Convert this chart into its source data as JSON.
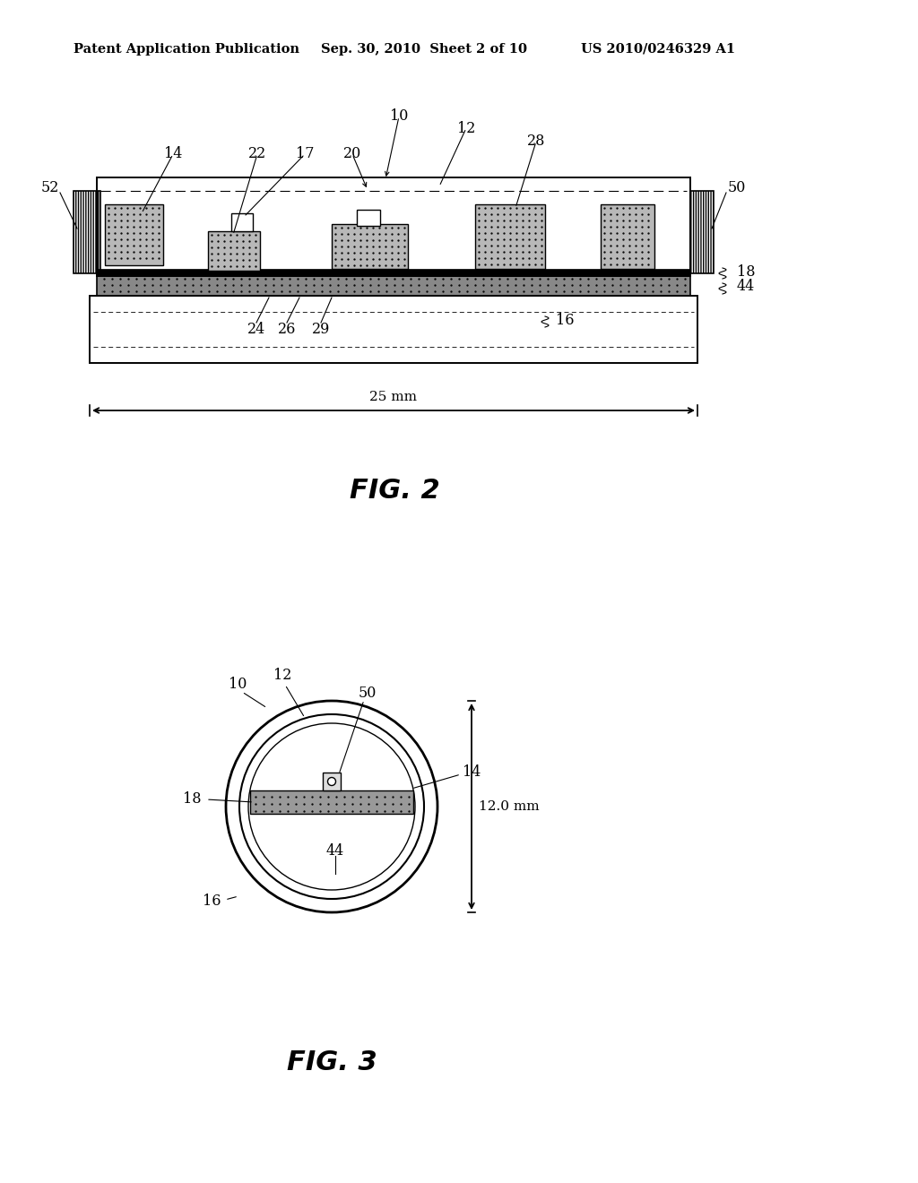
{
  "header_left": "Patent Application Publication",
  "header_mid": "Sep. 30, 2010  Sheet 2 of 10",
  "header_right": "US 2010/0246329 A1",
  "fig2_caption": "FIG. 2",
  "fig3_caption": "FIG. 3",
  "bg_color": "#ffffff",
  "text_color": "#000000",
  "gray_stipple": "#aaaaaa",
  "gray_dark": "#777777"
}
